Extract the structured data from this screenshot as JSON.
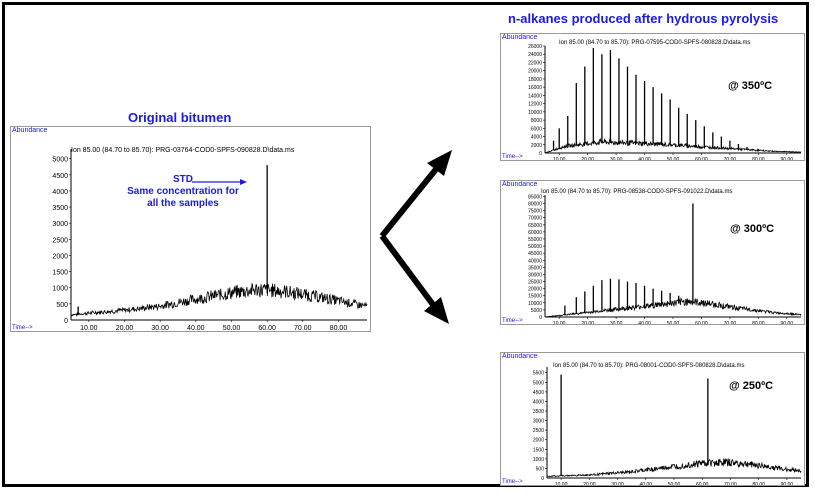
{
  "header": {
    "right_title": "n-alkanes produced after hydrous pyrolysis",
    "left_title": "Original bitumen"
  },
  "left_chart": {
    "abundance_label": "Abundance",
    "time_label": "Time-->",
    "ion_header": "Ion  85.00 (84.70 to 85.70): PRG-03764-COD0-SPFS-090828.D\\data.ms",
    "std_line1": "STD",
    "std_line2": "Same concentration for",
    "std_line3": "all the samples"
  },
  "panel_350": {
    "abundance_label": "Abundance",
    "time_label": "Time-->",
    "ion_header": "Ion  85.00 (84.70 to 85.70): PRG-07595-COD0-SPFS-080828.D\\data.ms",
    "temperature": "@ 350ºC"
  },
  "panel_300": {
    "abundance_label": "Abundance",
    "time_label": "Time-->",
    "ion_header": "Ion  85.00 (84.70 to 85.70): PRG-08538-COD0-SPFS-091022.D\\data.ms",
    "temperature": "@ 300ºC"
  },
  "panel_250": {
    "abundance_label": "Abundance",
    "time_label": "Time-->",
    "ion_header": "Ion  85.00 (84.70 to 85.70): PRG-08001-COD0-SPFS-080828.D\\data.ms",
    "temperature": "@ 250ºC"
  },
  "colors": {
    "accent": "#1a1ae6",
    "trace": "#000000"
  },
  "chart_data": [
    {
      "type": "line",
      "title": "Original bitumen",
      "ylabel": "Abundance",
      "xlabel": "Time-->",
      "x_ticks": [
        "10.00",
        "20.00",
        "30.00",
        "40.00",
        "50.00",
        "60.00",
        "70.00",
        "80.00"
      ],
      "y_ticks": [
        "500",
        "1000",
        "1500",
        "2000",
        "2500",
        "3000",
        "3500",
        "4000",
        "4500",
        "5000"
      ],
      "xlim": [
        5,
        88
      ],
      "ylim": [
        0,
        5300
      ],
      "baseline": [
        [
          5,
          150
        ],
        [
          10,
          200
        ],
        [
          20,
          280
        ],
        [
          30,
          400
        ],
        [
          40,
          600
        ],
        [
          50,
          780
        ],
        [
          57,
          870
        ],
        [
          65,
          820
        ],
        [
          75,
          650
        ],
        [
          85,
          450
        ],
        [
          88,
          400
        ]
      ],
      "peaks": [
        [
          7,
          420
        ],
        [
          60,
          4800
        ]
      ]
    },
    {
      "type": "line",
      "title": "@ 350ºC",
      "ylabel": "Abundance",
      "xlabel": "Time-->",
      "x_ticks": [
        "10.00",
        "20.00",
        "30.00",
        "40.00",
        "50.00",
        "60.00",
        "70.00",
        "80.00",
        "90.00"
      ],
      "y_ticks": [
        "2000",
        "4000",
        "6000",
        "8000",
        "10000",
        "12000",
        "14000",
        "16000",
        "18000",
        "20000",
        "22000",
        "24000",
        "26000"
      ],
      "xlim": [
        5,
        95
      ],
      "ylim": [
        0,
        26000
      ],
      "baseline": [
        [
          5,
          0
        ],
        [
          12,
          1500
        ],
        [
          25,
          2500
        ],
        [
          45,
          2000
        ],
        [
          65,
          1200
        ],
        [
          85,
          400
        ],
        [
          95,
          200
        ]
      ],
      "peaks": [
        [
          8,
          3000
        ],
        [
          10,
          6000
        ],
        [
          13,
          9000
        ],
        [
          16,
          17000
        ],
        [
          19,
          21000
        ],
        [
          22,
          25500
        ],
        [
          25,
          24000
        ],
        [
          28,
          25000
        ],
        [
          31,
          23000
        ],
        [
          34,
          21000
        ],
        [
          37,
          19000
        ],
        [
          40,
          17500
        ],
        [
          43,
          16000
        ],
        [
          46,
          14500
        ],
        [
          49,
          13000
        ],
        [
          52,
          11000
        ],
        [
          55,
          9500
        ],
        [
          58,
          8000
        ],
        [
          61,
          6500
        ],
        [
          64,
          5000
        ],
        [
          67,
          4000
        ],
        [
          70,
          3000
        ],
        [
          73,
          2200
        ],
        [
          76,
          1500
        ],
        [
          80,
          1000
        ]
      ]
    },
    {
      "type": "line",
      "title": "@ 300ºC",
      "ylabel": "Abundance",
      "xlabel": "Time-->",
      "x_ticks": [
        "10.00",
        "20.00",
        "30.00",
        "40.00",
        "50.00",
        "60.00",
        "70.00",
        "80.00",
        "90.00"
      ],
      "y_ticks": [
        "5000",
        "10000",
        "15000",
        "20000",
        "25000",
        "30000",
        "35000",
        "40000",
        "45000",
        "50000",
        "55000",
        "60000",
        "65000",
        "70000",
        "75000",
        "80000",
        "85000"
      ],
      "xlim": [
        5,
        95
      ],
      "ylim": [
        0,
        86000
      ],
      "baseline": [
        [
          5,
          0
        ],
        [
          15,
          2000
        ],
        [
          30,
          5000
        ],
        [
          45,
          8000
        ],
        [
          55,
          10000
        ],
        [
          62,
          9000
        ],
        [
          72,
          6000
        ],
        [
          85,
          3000
        ],
        [
          95,
          1500
        ]
      ],
      "peaks": [
        [
          12,
          8000
        ],
        [
          16,
          14000
        ],
        [
          19,
          18000
        ],
        [
          22,
          22000
        ],
        [
          25,
          26000
        ],
        [
          28,
          27000
        ],
        [
          31,
          26500
        ],
        [
          34,
          25000
        ],
        [
          37,
          24000
        ],
        [
          40,
          22000
        ],
        [
          43,
          20000
        ],
        [
          46,
          18500
        ],
        [
          49,
          17000
        ],
        [
          52,
          15000
        ],
        [
          55,
          13000
        ],
        [
          57,
          80000
        ],
        [
          60,
          12000
        ]
      ]
    },
    {
      "type": "line",
      "title": "@ 250ºC",
      "ylabel": "Abundance",
      "xlabel": "Time-->",
      "x_ticks": [
        "10.00",
        "20.00",
        "30.00",
        "40.00",
        "50.00",
        "60.00",
        "70.00",
        "80.00",
        "90.00"
      ],
      "y_ticks": [
        "500",
        "1000",
        "1500",
        "2000",
        "2500",
        "3000",
        "3500",
        "4000",
        "4500",
        "5000",
        "5500"
      ],
      "xlim": [
        5,
        95
      ],
      "ylim": [
        0,
        5800
      ],
      "baseline": [
        [
          5,
          80
        ],
        [
          20,
          150
        ],
        [
          35,
          300
        ],
        [
          50,
          550
        ],
        [
          60,
          720
        ],
        [
          68,
          760
        ],
        [
          78,
          650
        ],
        [
          88,
          450
        ],
        [
          95,
          350
        ]
      ],
      "peaks": [
        [
          10,
          5400
        ],
        [
          62,
          5200
        ]
      ]
    }
  ]
}
